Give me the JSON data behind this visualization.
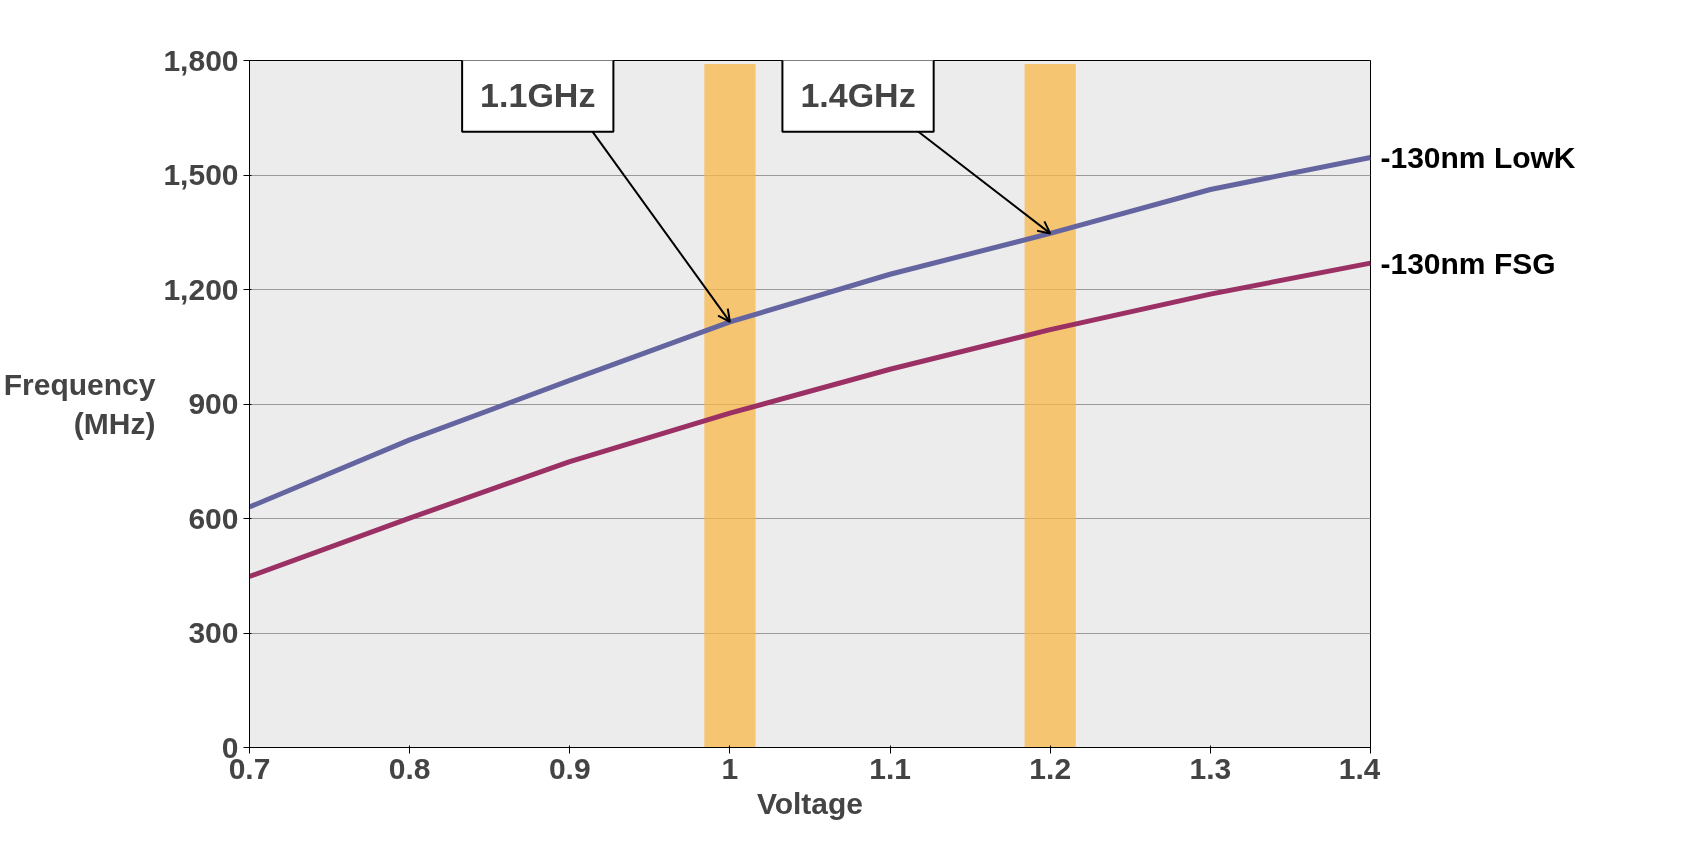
{
  "chart_data": {
    "type": "line",
    "xlabel": "Voltage",
    "ylabel": "Frequency\n(MHz)",
    "x": [
      0.7,
      0.8,
      0.9,
      1.0,
      1.1,
      1.2,
      1.3,
      1.4
    ],
    "series": [
      {
        "name": "-130nm LowK",
        "color": "#6464a0",
        "values": [
          630,
          806,
          962,
          1115,
          1240,
          1347,
          1462,
          1546
        ]
      },
      {
        "name": "-130nm FSG",
        "color": "#9b3064",
        "values": [
          448,
          601,
          749,
          876,
          991,
          1095,
          1188,
          1269
        ]
      }
    ],
    "xlim": [
      0.7,
      1.4
    ],
    "xticks": [
      0.7,
      0.8,
      0.9,
      1,
      1.1,
      1.2,
      1.3,
      1.4
    ],
    "ylim": [
      0,
      1800
    ],
    "yticks": [
      {
        "value": 0,
        "label": "0"
      },
      {
        "value": 300,
        "label": "300"
      },
      {
        "value": 600,
        "label": "600"
      },
      {
        "value": 900,
        "label": "900"
      },
      {
        "value": 1200,
        "label": "1,200"
      },
      {
        "value": 1500,
        "label": "1,500"
      },
      {
        "value": 1800,
        "label": "1,800"
      }
    ],
    "bands": [
      {
        "axis": "x",
        "from": 0.984,
        "to": 1.016,
        "color": "#f9b84a"
      },
      {
        "axis": "x",
        "from": 1.184,
        "to": 1.216,
        "color": "#f9b84a"
      }
    ],
    "annotations": [
      {
        "text": "1.1GHz",
        "x": 1.0,
        "y": 1115
      },
      {
        "text": "1.4GHz",
        "x": 1.2,
        "y": 1347
      }
    ],
    "grid": "y",
    "marker": "none",
    "line_style": "solid"
  }
}
